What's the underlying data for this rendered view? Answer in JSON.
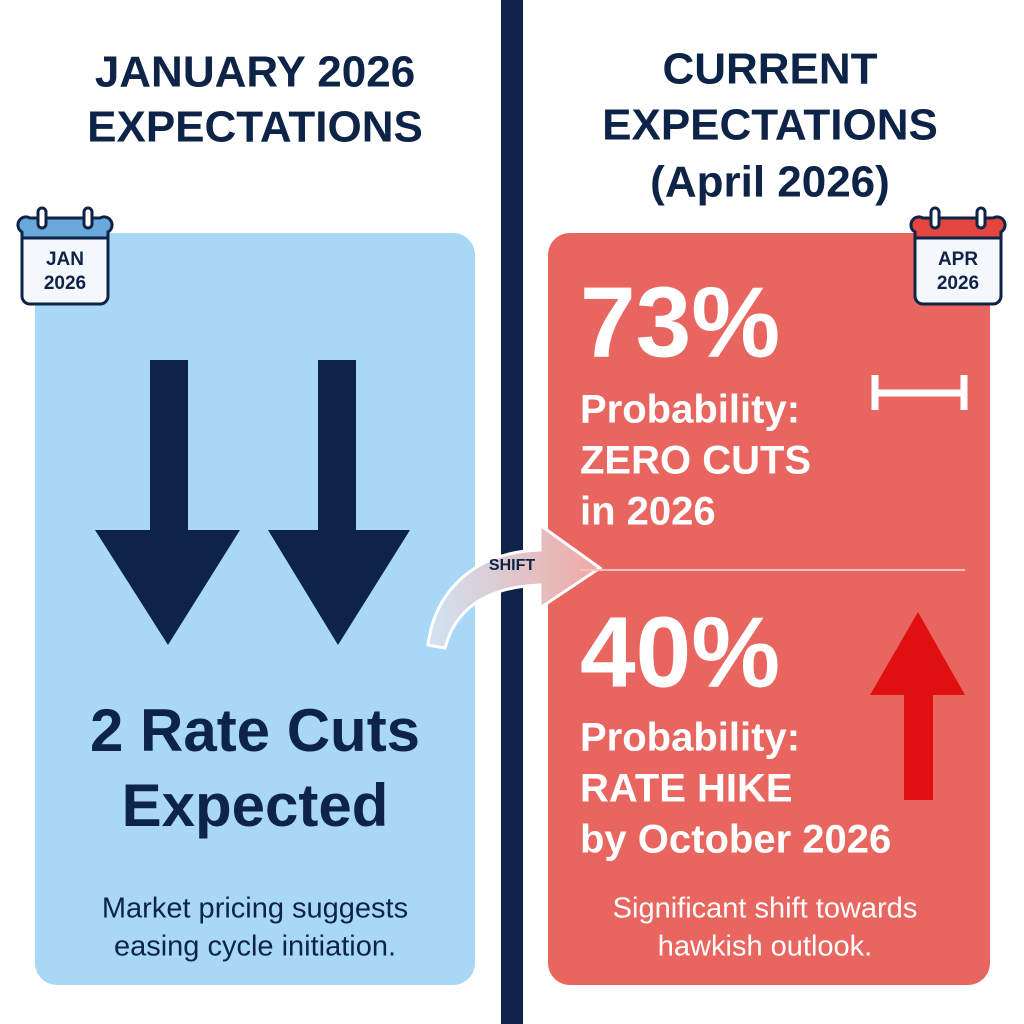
{
  "left": {
    "title": [
      "JANUARY 2026",
      "EXPECTATIONS"
    ],
    "calendar": [
      "JAN",
      "2026"
    ],
    "headline": [
      "2 Rate Cuts",
      "Expected"
    ],
    "note": [
      "Market pricing suggests",
      "easing cycle initiation."
    ]
  },
  "shift_label": "SHIFT",
  "right": {
    "title": [
      "CURRENT",
      "EXPECTATIONS",
      "(April 2026)"
    ],
    "calendar": [
      "APR",
      "2026"
    ],
    "stats": [
      {
        "value": "73%",
        "label": [
          "Probability:",
          "ZERO CUTS",
          "in 2026"
        ]
      },
      {
        "value": "40%",
        "label": [
          "Probability:",
          "RATE HIKE",
          "by October 2026"
        ]
      }
    ],
    "note": [
      "Significant shift towards",
      "hawkish outlook."
    ]
  }
}
